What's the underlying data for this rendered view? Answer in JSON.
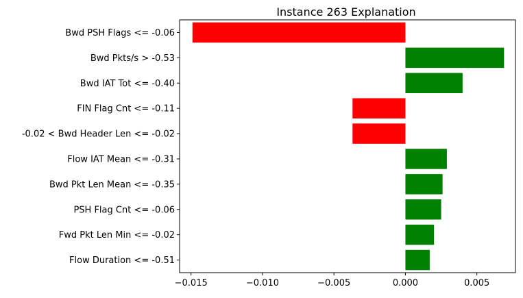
{
  "chart_data": {
    "type": "bar",
    "orientation": "horizontal",
    "title": "Instance 263 Explanation",
    "xlabel": "",
    "ylabel": "",
    "categories": [
      "Bwd PSH Flags <= -0.06",
      "Bwd Pkts/s > -0.53",
      "Bwd IAT Tot <= -0.40",
      "FIN Flag Cnt <= -0.11",
      "-0.02 < Bwd Header Len <= -0.02",
      "Flow IAT Mean <= -0.31",
      "Bwd Pkt Len Mean <= -0.35",
      "PSH Flag Cnt <= -0.06",
      "Fwd Pkt Len Min <= -0.02",
      "Flow Duration <= -0.51"
    ],
    "values": [
      -0.0149,
      0.0069,
      0.004,
      -0.0037,
      -0.0037,
      0.0029,
      0.0026,
      0.0025,
      0.002,
      0.0017
    ],
    "xlim": [
      -0.0158,
      0.0077
    ],
    "xticks": [
      -0.015,
      -0.01,
      -0.005,
      0.0,
      0.005
    ],
    "xtick_labels": [
      "−0.015",
      "−0.010",
      "−0.005",
      "0.000",
      "0.005"
    ],
    "colors": {
      "positive": "#008000",
      "negative": "#ff0000"
    },
    "grid": false,
    "legend": "none"
  }
}
